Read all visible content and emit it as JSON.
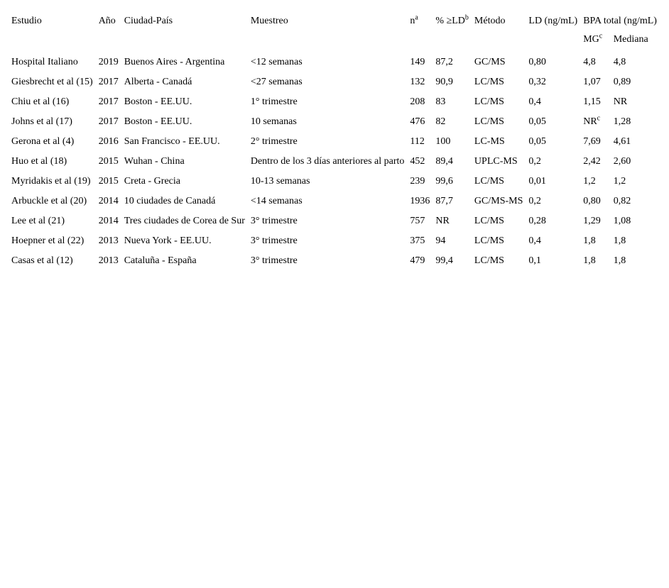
{
  "headers": {
    "estudio": "Estudio",
    "ano": "Año",
    "ciudad": "Ciudad-País",
    "muestreo": "Muestreo",
    "n": "n",
    "n_sup": "a",
    "pctld": "% ≥LD",
    "pctld_sup": "b",
    "metodo": "Método",
    "ld": "LD (ng/mL)",
    "bpa": "BPA total (ng/mL)",
    "mg": "MG",
    "mg_sup": "c",
    "mediana": "Mediana"
  },
  "rows": [
    {
      "estudio": "Hospital Italiano",
      "ano": "2019",
      "ciudad": "Buenos Aires - Argentina",
      "muestreo": "<12 semanas",
      "n": "149",
      "pctld": "87,2",
      "metodo": "GC/MS",
      "ld": "0,80",
      "mg": "4,8",
      "mg_sup": "",
      "mediana": "4,8"
    },
    {
      "estudio": "Giesbrecht et al (15)",
      "ano": "2017",
      "ciudad": "Alberta - Canadá",
      "muestreo": "<27 semanas",
      "n": "132",
      "pctld": "90,9",
      "metodo": "LC/MS",
      "ld": "0,32",
      "mg": "1,07",
      "mg_sup": "",
      "mediana": "0,89"
    },
    {
      "estudio": "Chiu et al (16)",
      "ano": "2017",
      "ciudad": "Boston - EE.UU.",
      "muestreo": "1° trimestre",
      "n": "208",
      "pctld": "83",
      "metodo": "LC/MS",
      "ld": "0,4",
      "mg": "1,15",
      "mg_sup": "",
      "mediana": "NR"
    },
    {
      "estudio": "Johns et al (17)",
      "ano": "2017",
      "ciudad": "Boston - EE.UU.",
      "muestreo": "10 semanas",
      "n": "476",
      "pctld": "82",
      "metodo": "LC/MS",
      "ld": "0,05",
      "mg": "NR",
      "mg_sup": "c",
      "mediana": "1,28"
    },
    {
      "estudio": "Gerona et al (4)",
      "ano": "2016",
      "ciudad": "San Francisco - EE.UU.",
      "muestreo": "2° trimestre",
      "n": "112",
      "pctld": "100",
      "metodo": "LC-MS",
      "ld": "0,05",
      "mg": "7,69",
      "mg_sup": "",
      "mediana": "4,61"
    },
    {
      "estudio": "Huo et al (18)",
      "ano": "2015",
      "ciudad": "Wuhan - China",
      "muestreo": "Dentro de los 3 días anteriores al parto",
      "n": "452",
      "pctld": "89,4",
      "metodo": "UPLC-MS",
      "ld": "0,2",
      "mg": "2,42",
      "mg_sup": "",
      "mediana": "2,60"
    },
    {
      "estudio": "Myridakis et al (19)",
      "ano": "2015",
      "ciudad": "Creta - Grecia",
      "muestreo": "10-13 semanas",
      "n": "239",
      "pctld": "99,6",
      "metodo": "LC/MS",
      "ld": "0,01",
      "mg": "1,2",
      "mg_sup": "",
      "mediana": "1,2"
    },
    {
      "estudio": "Arbuckle et al (20)",
      "ano": "2014",
      "ciudad": "10 ciudades de Canadá",
      "muestreo": "<14 semanas",
      "n": "1936",
      "pctld": "87,7",
      "metodo": "GC/MS-MS",
      "ld": "0,2",
      "mg": "0,80",
      "mg_sup": "",
      "mediana": "0,82"
    },
    {
      "estudio": "Lee et al (21)",
      "ano": "2014",
      "ciudad": "Tres ciudades de Corea de Sur",
      "muestreo": "3° trimestre",
      "n": "757",
      "pctld": "NR",
      "metodo": "LC/MS",
      "ld": "0,28",
      "mg": "1,29",
      "mg_sup": "",
      "mediana": "1,08"
    },
    {
      "estudio": "Hoepner et al (22)",
      "ano": "2013",
      "ciudad": "Nueva York - EE.UU.",
      "muestreo": "3° trimestre",
      "n": "375",
      "pctld": "94",
      "metodo": "LC/MS",
      "ld": "0,4",
      "mg": "1,8",
      "mg_sup": "",
      "mediana": "1,8"
    },
    {
      "estudio": "Casas et al (12)",
      "ano": "2013",
      "ciudad": "Cataluña - España",
      "muestreo": "3° trimestre",
      "n": "479",
      "pctld": "99,4",
      "metodo": "LC/MS",
      "ld": "0,1",
      "mg": "1,8",
      "mg_sup": "",
      "mediana": "1,8"
    }
  ]
}
